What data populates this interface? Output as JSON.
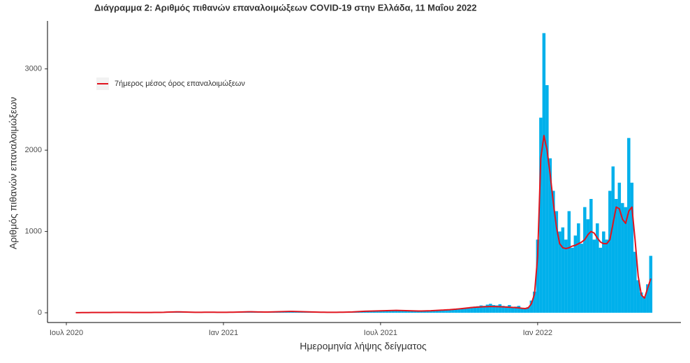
{
  "chart_data": {
    "type": "bar",
    "title": "Διάγραμμα 2: Αριθμός πιθανών επαναλοιμώξεων COVID-19 στην Ελλάδα, 11 Μαΐου 2022",
    "x_label": "Ημερομηνία λήψης δείγματος",
    "y_label": "Αριθμός πιθανών επαναλοιμώξεων",
    "x": [
      2020.53,
      2020.54,
      2020.55,
      2020.56,
      2020.57,
      2020.58,
      2020.59,
      2020.6,
      2020.61,
      2020.62,
      2020.63,
      2020.64,
      2020.65,
      2020.66,
      2020.67,
      2020.68,
      2020.69,
      2020.7,
      2020.71,
      2020.72,
      2020.73,
      2020.74,
      2020.75,
      2020.76,
      2020.77,
      2020.78,
      2020.79,
      2020.8,
      2020.81,
      2020.82,
      2020.83,
      2020.84,
      2020.85,
      2020.86,
      2020.87,
      2020.88,
      2020.89,
      2020.9,
      2020.91,
      2020.92,
      2020.93,
      2020.94,
      2020.95,
      2020.96,
      2020.97,
      2020.98,
      2020.99,
      2021.0,
      2021.01,
      2021.02,
      2021.03,
      2021.04,
      2021.05,
      2021.06,
      2021.07,
      2021.08,
      2021.09,
      2021.1,
      2021.11,
      2021.12,
      2021.13,
      2021.14,
      2021.15,
      2021.16,
      2021.17,
      2021.18,
      2021.19,
      2021.2,
      2021.21,
      2021.22,
      2021.23,
      2021.24,
      2021.25,
      2021.26,
      2021.27,
      2021.28,
      2021.29,
      2021.3,
      2021.31,
      2021.32,
      2021.33,
      2021.34,
      2021.35,
      2021.36,
      2021.37,
      2021.38,
      2021.39,
      2021.4,
      2021.41,
      2021.42,
      2021.43,
      2021.44,
      2021.45,
      2021.46,
      2021.47,
      2021.48,
      2021.49,
      2021.5,
      2021.51,
      2021.52,
      2021.53,
      2021.54,
      2021.55,
      2021.56,
      2021.57,
      2021.58,
      2021.59,
      2021.6,
      2021.61,
      2021.62,
      2021.63,
      2021.64,
      2021.65,
      2021.66,
      2021.67,
      2021.68,
      2021.69,
      2021.7,
      2021.71,
      2021.72,
      2021.73,
      2021.74,
      2021.75,
      2021.76,
      2021.77,
      2021.78,
      2021.79,
      2021.8,
      2021.81,
      2021.82,
      2021.83,
      2021.84,
      2021.85,
      2021.86,
      2021.87,
      2021.88,
      2021.89,
      2021.9,
      2021.91,
      2021.92,
      2021.93,
      2021.94,
      2021.95,
      2021.96,
      2021.97,
      2021.98,
      2021.99,
      2022.0,
      2022.01,
      2022.02,
      2022.03,
      2022.04,
      2022.05,
      2022.06,
      2022.07,
      2022.08,
      2022.09,
      2022.1,
      2022.11,
      2022.12,
      2022.13,
      2022.14,
      2022.15,
      2022.16,
      2022.17,
      2022.18,
      2022.19,
      2022.2,
      2022.21,
      2022.22,
      2022.23,
      2022.24,
      2022.25,
      2022.26,
      2022.27,
      2022.28,
      2022.29,
      2022.3,
      2022.31,
      2022.32,
      2022.33,
      2022.34,
      2022.35,
      2022.36
    ],
    "series": [
      {
        "color": "#00b0eb",
        "values": [
          1,
          2,
          3,
          2,
          3,
          4,
          3,
          5,
          4,
          3,
          2,
          3,
          4,
          5,
          6,
          5,
          4,
          3,
          3,
          2,
          3,
          4,
          3,
          2,
          3,
          4,
          5,
          6,
          8,
          10,
          12,
          14,
          12,
          10,
          9,
          8,
          7,
          6,
          5,
          6,
          7,
          8,
          9,
          8,
          7,
          6,
          5,
          5,
          6,
          7,
          8,
          9,
          10,
          12,
          14,
          13,
          12,
          11,
          10,
          9,
          8,
          9,
          10,
          11,
          12,
          14,
          16,
          18,
          20,
          18,
          16,
          14,
          12,
          11,
          10,
          9,
          8,
          7,
          6,
          6,
          5,
          5,
          6,
          6,
          7,
          8,
          9,
          10,
          12,
          14,
          16,
          18,
          20,
          22,
          24,
          26,
          25,
          24,
          26,
          30,
          28,
          32,
          35,
          30,
          28,
          26,
          25,
          24,
          22,
          20,
          22,
          24,
          26,
          28,
          30,
          32,
          35,
          38,
          40,
          42,
          45,
          48,
          50,
          55,
          60,
          65,
          70,
          75,
          80,
          90,
          85,
          100,
          110,
          95,
          90,
          105,
          85,
          80,
          95,
          70,
          75,
          85,
          60,
          50,
          70,
          150,
          260,
          900,
          2400,
          3440,
          2800,
          1900,
          1500,
          1250,
          1000,
          1050,
          900,
          1250,
          800,
          950,
          1100,
          850,
          1300,
          1150,
          1400,
          900,
          1100,
          800,
          1000,
          900,
          1500,
          1800,
          1400,
          1600,
          1350,
          1300,
          2150,
          1600,
          750,
          400,
          250,
          200,
          350,
          700
        ]
      },
      {
        "name": "7ήμερος μέσος όρος επαναλοιμώξεων",
        "type": "line",
        "color": "#e0141e",
        "values": [
          1,
          1,
          2,
          2,
          2,
          3,
          3,
          3,
          3,
          3,
          3,
          3,
          4,
          4,
          4,
          4,
          4,
          4,
          3,
          3,
          3,
          3,
          3,
          3,
          3,
          4,
          4,
          5,
          6,
          8,
          9,
          10,
          11,
          11,
          10,
          9,
          8,
          7,
          6,
          6,
          6,
          7,
          7,
          7,
          7,
          6,
          6,
          6,
          6,
          7,
          7,
          8,
          9,
          10,
          11,
          12,
          12,
          11,
          10,
          10,
          9,
          9,
          10,
          11,
          12,
          13,
          14,
          15,
          16,
          16,
          15,
          14,
          13,
          12,
          11,
          10,
          9,
          8,
          7,
          7,
          6,
          6,
          6,
          6,
          7,
          7,
          8,
          9,
          10,
          12,
          14,
          16,
          18,
          20,
          21,
          22,
          23,
          24,
          25,
          26,
          27,
          28,
          29,
          28,
          27,
          26,
          25,
          24,
          23,
          22,
          22,
          23,
          24,
          25,
          27,
          29,
          31,
          33,
          36,
          38,
          41,
          44,
          48,
          52,
          56,
          60,
          65,
          68,
          70,
          72,
          74,
          75,
          76,
          76,
          75,
          74,
          72,
          70,
          68,
          66,
          64,
          60,
          55,
          52,
          60,
          110,
          230,
          700,
          1900,
          2180,
          2000,
          1700,
          1350,
          1050,
          850,
          800,
          790,
          800,
          820,
          830,
          850,
          870,
          900,
          960,
          1000,
          980,
          920,
          870,
          850,
          850,
          900,
          1100,
          1300,
          1280,
          1150,
          1100,
          1250,
          1300,
          900,
          450,
          220,
          180,
          300,
          420
        ]
      }
    ],
    "xlim": [
      2020.44,
      2022.456
    ],
    "xticks": [
      {
        "value": 2020.5,
        "label": "Ιουλ 2020"
      },
      {
        "value": 2021.0,
        "label": "Ιαν 2021"
      },
      {
        "value": 2021.5,
        "label": "Ιουλ 2021"
      },
      {
        "value": 2022.0,
        "label": "Ιαν 2022"
      }
    ],
    "ylim": [
      -120,
      3590
    ],
    "yticks": [
      0,
      1000,
      2000,
      3000
    ],
    "grid": false,
    "legend": "top-left"
  }
}
